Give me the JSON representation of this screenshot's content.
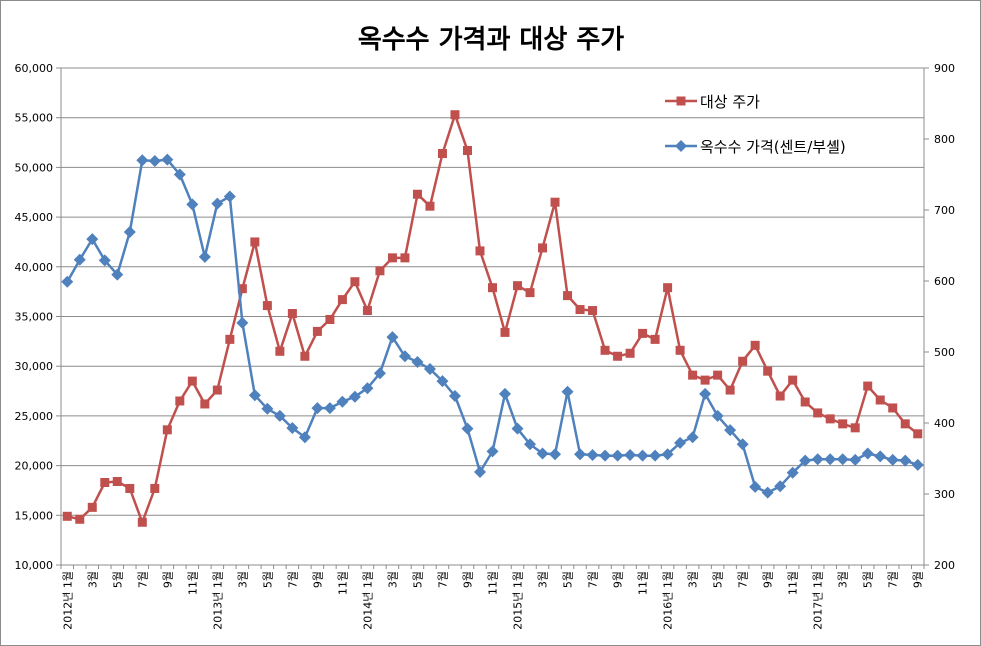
{
  "chart_data": {
    "type": "line",
    "title": "옥수수 가격과 대상 주가",
    "y_left": {
      "min": 10000,
      "max": 60000,
      "step": 5000,
      "ticks": [
        "10,000",
        "15,000",
        "20,000",
        "25,000",
        "30,000",
        "35,000",
        "40,000",
        "45,000",
        "50,000",
        "55,000",
        "60,000"
      ]
    },
    "y_right": {
      "min": 200,
      "max": 900,
      "step": 100,
      "ticks": [
        "200",
        "300",
        "400",
        "500",
        "600",
        "700",
        "800",
        "900"
      ]
    },
    "grid": true,
    "legend_position": "top-right",
    "x_tick_labels": [
      "2012년 1월",
      "",
      "3월",
      "",
      "5월",
      "",
      "7월",
      "",
      "9월",
      "",
      "11월",
      "",
      "2013년 1월",
      "",
      "3월",
      "",
      "5월",
      "",
      "7월",
      "",
      "9월",
      "",
      "11월",
      "",
      "2014년 1월",
      "",
      "3월",
      "",
      "5월",
      "",
      "7월",
      "",
      "9월",
      "",
      "11월",
      "",
      "2015년 1월",
      "",
      "3월",
      "",
      "5월",
      "",
      "7월",
      "",
      "9월",
      "",
      "11월",
      "",
      "2016년 1월",
      "",
      "3월",
      "",
      "5월",
      "",
      "7월",
      "",
      "9월",
      "",
      "11월",
      "",
      "2017년 1월",
      "",
      "3월",
      "",
      "5월",
      "",
      "7월",
      "",
      "9월"
    ],
    "series": [
      {
        "name": "대상 주가",
        "axis": "left",
        "color": "#c0504d",
        "marker": "square",
        "values": [
          14900,
          14600,
          15800,
          18300,
          18400,
          17700,
          14300,
          17700,
          23600,
          26500,
          28500,
          26200,
          27600,
          32700,
          37800,
          42500,
          36100,
          31500,
          35300,
          31000,
          33500,
          34700,
          36700,
          38500,
          35600,
          39600,
          40900,
          40900,
          47300,
          46100,
          51400,
          55300,
          51700,
          41600,
          37900,
          33400,
          38100,
          37400,
          41900,
          46500,
          37100,
          35700,
          35600,
          31600,
          31000,
          31300,
          33300,
          32700,
          37900,
          31600,
          29100,
          28600,
          29100,
          27600,
          30500,
          32100,
          29500,
          27000,
          28600,
          26400,
          25300,
          24700,
          24200,
          23800,
          28000,
          26600,
          25800,
          24200,
          23200
        ]
      },
      {
        "name": "옥수수 가격(센트/부셸)",
        "axis": "right",
        "color": "#4f81bd",
        "marker": "diamond",
        "values": [
          599,
          630,
          659,
          629,
          609,
          669,
          770,
          769,
          771,
          750,
          708,
          634,
          709,
          719,
          541,
          439,
          420,
          410,
          393,
          380,
          421,
          421,
          430,
          437,
          449,
          470,
          521,
          494,
          486,
          476,
          459,
          438,
          392,
          331,
          360,
          441,
          392,
          370,
          357,
          356,
          444,
          356,
          355,
          354,
          354,
          355,
          354,
          354,
          356,
          372,
          380,
          441,
          410,
          390,
          370,
          310,
          302,
          311,
          330,
          347,
          349,
          349,
          349,
          348,
          357,
          353,
          348,
          347,
          341
        ]
      }
    ]
  }
}
